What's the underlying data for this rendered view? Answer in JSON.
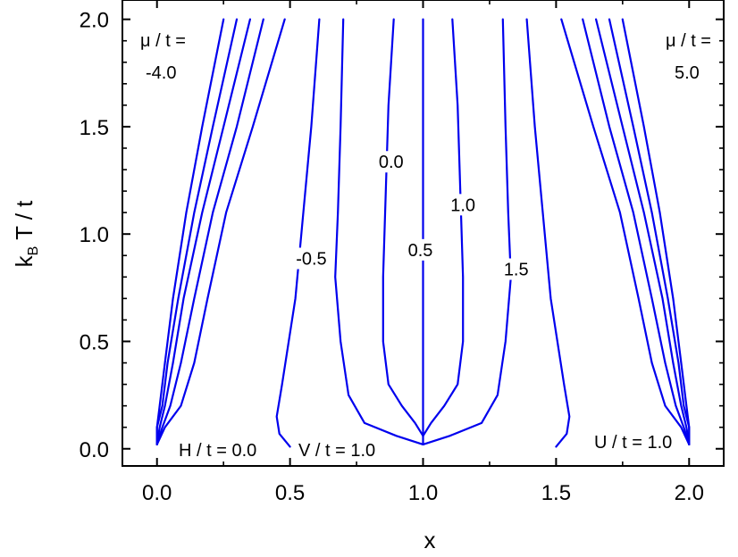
{
  "chart_data": {
    "type": "line",
    "title": "",
    "xlabel": "x",
    "ylabel": "k_B T / t",
    "xlim": [
      -0.13,
      2.13
    ],
    "ylim": [
      -0.08,
      2.09
    ],
    "x_ticks": [
      "0.0",
      "0.5",
      "1.0",
      "1.5",
      "2.0"
    ],
    "y_ticks": [
      "0.0",
      "0.5",
      "1.0",
      "1.5",
      "2.0"
    ],
    "grid": false,
    "line_color": "#0000ee",
    "annotations": {
      "mu_left_line1": "μ / t =",
      "mu_left_line2": "-4.0",
      "mu_right_line1": "μ / t =",
      "mu_right_line2": "5.0",
      "h": "H / t = 0.0",
      "v": "V / t = 1.0",
      "u": "U / t = 1.0"
    },
    "curve_labels": [
      {
        "text": "0.0",
        "x": 0.88,
        "y": 1.32
      },
      {
        "text": "-0.5",
        "x": 0.58,
        "y": 0.87
      },
      {
        "text": "0.5",
        "x": 0.99,
        "y": 0.91
      },
      {
        "text": "1.0",
        "x": 1.15,
        "y": 1.12
      },
      {
        "text": "1.5",
        "x": 1.35,
        "y": 0.82
      }
    ],
    "series": [
      {
        "points": [
          [
            0.0,
            0.02
          ],
          [
            0.0,
            0.1
          ],
          [
            0.01,
            0.2
          ],
          [
            0.03,
            0.4
          ],
          [
            0.06,
            0.7
          ],
          [
            0.11,
            1.1
          ],
          [
            0.17,
            1.5
          ],
          [
            0.25,
            2.0
          ]
        ]
      },
      {
        "points": [
          [
            0.0,
            0.02
          ],
          [
            0.0,
            0.1
          ],
          [
            0.02,
            0.2
          ],
          [
            0.04,
            0.4
          ],
          [
            0.08,
            0.7
          ],
          [
            0.14,
            1.1
          ],
          [
            0.21,
            1.5
          ],
          [
            0.3,
            2.0
          ]
        ]
      },
      {
        "points": [
          [
            0.0,
            0.02
          ],
          [
            0.01,
            0.1
          ],
          [
            0.03,
            0.2
          ],
          [
            0.06,
            0.4
          ],
          [
            0.1,
            0.7
          ],
          [
            0.17,
            1.1
          ],
          [
            0.25,
            1.5
          ],
          [
            0.35,
            2.0
          ]
        ]
      },
      {
        "points": [
          [
            0.0,
            0.02
          ],
          [
            0.02,
            0.1
          ],
          [
            0.05,
            0.2
          ],
          [
            0.09,
            0.4
          ],
          [
            0.14,
            0.7
          ],
          [
            0.21,
            1.1
          ],
          [
            0.3,
            1.5
          ],
          [
            0.4,
            2.0
          ]
        ]
      },
      {
        "points": [
          [
            0.0,
            0.02
          ],
          [
            0.03,
            0.1
          ],
          [
            0.09,
            0.2
          ],
          [
            0.14,
            0.4
          ],
          [
            0.19,
            0.7
          ],
          [
            0.26,
            1.1
          ],
          [
            0.36,
            1.5
          ],
          [
            0.48,
            2.0
          ]
        ]
      },
      {
        "points": [
          [
            0.5,
            0.01
          ],
          [
            0.46,
            0.07
          ],
          [
            0.45,
            0.15
          ],
          [
            0.47,
            0.3
          ],
          [
            0.52,
            0.7
          ],
          [
            0.55,
            1.1
          ],
          [
            0.58,
            1.5
          ],
          [
            0.61,
            2.0
          ]
        ]
      },
      {
        "points": [
          [
            1.0,
            0.02
          ],
          [
            0.9,
            0.06
          ],
          [
            0.78,
            0.12
          ],
          [
            0.72,
            0.25
          ],
          [
            0.69,
            0.5
          ],
          [
            0.67,
            0.8
          ],
          [
            0.68,
            1.1
          ],
          [
            0.69,
            1.5
          ],
          [
            0.7,
            2.0
          ]
        ]
      },
      {
        "points": [
          [
            1.0,
            0.06
          ],
          [
            0.97,
            0.12
          ],
          [
            0.92,
            0.2
          ],
          [
            0.87,
            0.3
          ],
          [
            0.85,
            0.5
          ],
          [
            0.85,
            0.8
          ],
          [
            0.86,
            1.2
          ],
          [
            0.87,
            1.6
          ],
          [
            0.89,
            2.0
          ]
        ]
      },
      {
        "points": [
          [
            1.0,
            0.02
          ],
          [
            1.0,
            2.0
          ]
        ]
      },
      {
        "points": [
          [
            1.0,
            0.06
          ],
          [
            1.03,
            0.12
          ],
          [
            1.08,
            0.2
          ],
          [
            1.13,
            0.3
          ],
          [
            1.15,
            0.5
          ],
          [
            1.15,
            0.8
          ],
          [
            1.14,
            1.2
          ],
          [
            1.13,
            1.6
          ],
          [
            1.11,
            2.0
          ]
        ]
      },
      {
        "points": [
          [
            1.0,
            0.02
          ],
          [
            1.1,
            0.06
          ],
          [
            1.22,
            0.12
          ],
          [
            1.28,
            0.25
          ],
          [
            1.31,
            0.5
          ],
          [
            1.33,
            0.8
          ],
          [
            1.32,
            1.1
          ],
          [
            1.31,
            1.5
          ],
          [
            1.3,
            2.0
          ]
        ]
      },
      {
        "points": [
          [
            1.5,
            0.01
          ],
          [
            1.54,
            0.07
          ],
          [
            1.55,
            0.15
          ],
          [
            1.53,
            0.3
          ],
          [
            1.48,
            0.7
          ],
          [
            1.45,
            1.1
          ],
          [
            1.42,
            1.5
          ],
          [
            1.39,
            2.0
          ]
        ]
      },
      {
        "points": [
          [
            2.0,
            0.02
          ],
          [
            1.97,
            0.1
          ],
          [
            1.91,
            0.2
          ],
          [
            1.86,
            0.4
          ],
          [
            1.81,
            0.7
          ],
          [
            1.74,
            1.1
          ],
          [
            1.64,
            1.5
          ],
          [
            1.52,
            2.0
          ]
        ]
      },
      {
        "points": [
          [
            2.0,
            0.02
          ],
          [
            1.98,
            0.1
          ],
          [
            1.95,
            0.2
          ],
          [
            1.91,
            0.4
          ],
          [
            1.86,
            0.7
          ],
          [
            1.79,
            1.1
          ],
          [
            1.7,
            1.5
          ],
          [
            1.6,
            2.0
          ]
        ]
      },
      {
        "points": [
          [
            2.0,
            0.02
          ],
          [
            1.99,
            0.1
          ],
          [
            1.97,
            0.2
          ],
          [
            1.94,
            0.4
          ],
          [
            1.9,
            0.7
          ],
          [
            1.83,
            1.1
          ],
          [
            1.75,
            1.5
          ],
          [
            1.65,
            2.0
          ]
        ]
      },
      {
        "points": [
          [
            2.0,
            0.02
          ],
          [
            2.0,
            0.1
          ],
          [
            1.98,
            0.2
          ],
          [
            1.96,
            0.4
          ],
          [
            1.92,
            0.7
          ],
          [
            1.86,
            1.1
          ],
          [
            1.79,
            1.5
          ],
          [
            1.7,
            2.0
          ]
        ]
      },
      {
        "points": [
          [
            2.0,
            0.02
          ],
          [
            2.0,
            0.1
          ],
          [
            1.99,
            0.2
          ],
          [
            1.97,
            0.4
          ],
          [
            1.94,
            0.7
          ],
          [
            1.89,
            1.1
          ],
          [
            1.83,
            1.5
          ],
          [
            1.75,
            2.0
          ]
        ]
      }
    ]
  }
}
